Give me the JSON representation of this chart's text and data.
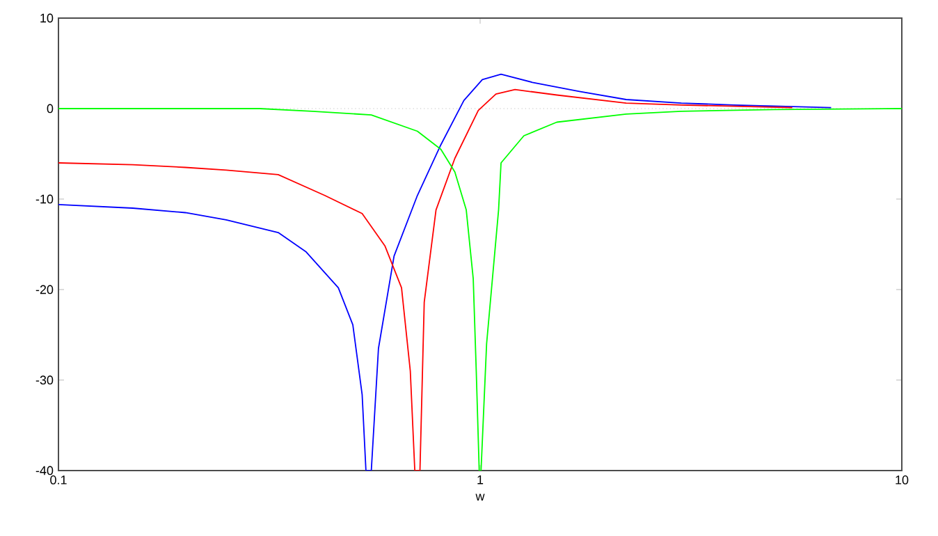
{
  "chart_data": {
    "type": "line",
    "xlabel": "w",
    "log": "x",
    "xlim": [
      0.1,
      10
    ],
    "ylim": [
      -40,
      10
    ],
    "xticks": [
      0.1,
      1,
      10
    ],
    "yticks": [
      -40,
      -30,
      -20,
      -10,
      0,
      10
    ],
    "grid": false,
    "marker": "none",
    "line_style": "solid",
    "ref_lines": [
      {
        "axis": "y",
        "value": 0,
        "color": "#c0c0c0",
        "line_style": "dotted"
      }
    ],
    "series": [
      {
        "color": "#0000ff",
        "x": [
          0.1,
          0.15,
          0.2,
          0.25,
          0.332,
          0.386,
          0.461,
          0.499,
          0.525,
          0.536,
          0.552,
          0.574,
          0.625,
          0.71,
          0.807,
          0.915,
          1.012,
          1.121,
          1.33,
          1.72,
          2.22,
          3,
          4,
          6.8
        ],
        "values": [
          -10.6,
          -11.0,
          -11.5,
          -12.3,
          -13.7,
          -15.8,
          -19.8,
          -23.9,
          -31.6,
          -40,
          -40,
          -26.5,
          -16.3,
          -9.6,
          -4.0,
          0.9,
          3.2,
          3.8,
          2.9,
          1.9,
          1.0,
          0.6,
          0.4,
          0.1
        ]
      },
      {
        "color": "#ff0000",
        "x": [
          0.1,
          0.15,
          0.2,
          0.25,
          0.332,
          0.428,
          0.525,
          0.595,
          0.651,
          0.683,
          0.7,
          0.72,
          0.737,
          0.786,
          0.871,
          0.99,
          1.09,
          1.21,
          1.52,
          2.22,
          3,
          5.5
        ],
        "values": [
          -6.0,
          -6.2,
          -6.5,
          -6.8,
          -7.3,
          -9.6,
          -11.6,
          -15.2,
          -19.8,
          -29,
          -40,
          -40,
          -21.4,
          -11.2,
          -5.5,
          -0.2,
          1.6,
          2.1,
          1.5,
          0.6,
          0.4,
          0.1
        ]
      },
      {
        "color": "#00ff00",
        "x": [
          0.1,
          0.3,
          0.4,
          0.552,
          0.71,
          0.807,
          0.871,
          0.927,
          0.963,
          0.979,
          0.995,
          1.005,
          1.036,
          1.106,
          1.121,
          1.27,
          1.52,
          2.22,
          3,
          5,
          10
        ],
        "values": [
          0,
          0,
          -0.3,
          -0.7,
          -2.5,
          -4.5,
          -7.0,
          -11.2,
          -18.8,
          -29,
          -40,
          -40,
          -26,
          -11.2,
          -6.0,
          -3.0,
          -1.5,
          -0.6,
          -0.3,
          -0.1,
          0
        ]
      }
    ]
  }
}
